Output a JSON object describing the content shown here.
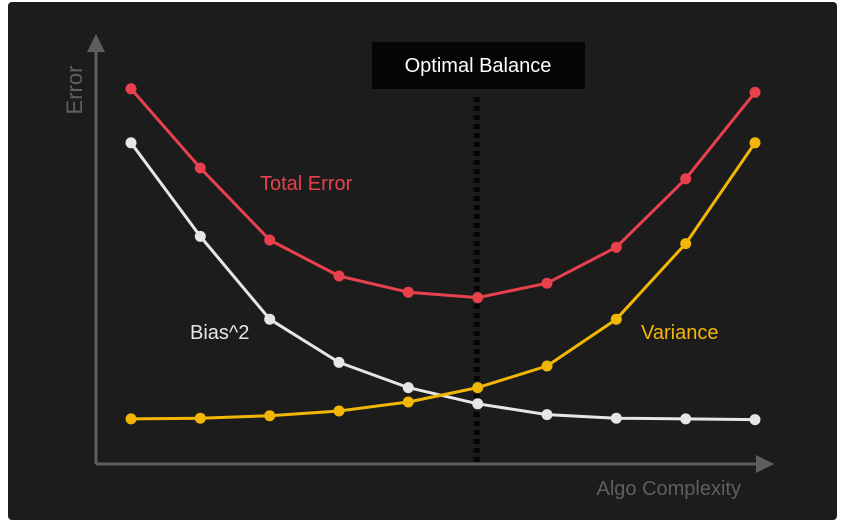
{
  "chart_data": {
    "type": "line",
    "xlabel": "Algo Complexity",
    "ylabel": "Error",
    "x": [
      1,
      2,
      3,
      4,
      5,
      6,
      7,
      8,
      9,
      10
    ],
    "ylim": [
      0,
      100
    ],
    "grid": false,
    "annotation": {
      "label": "Optimal Balance",
      "x": 6,
      "style": "dotted vertical line"
    },
    "series": [
      {
        "name": "Total Error",
        "color": "#e8414d",
        "values": [
          92,
          70,
          50,
          40,
          35.5,
          34,
          38,
          48,
          67,
          91
        ]
      },
      {
        "name": "Bias^2",
        "color": "#e6e6e6",
        "values": [
          77,
          51,
          28,
          16,
          9,
          4.5,
          1.5,
          0.5,
          0.3,
          0.1
        ]
      },
      {
        "name": "Variance",
        "color": "#f2b705",
        "values": [
          0.3,
          0.5,
          1.2,
          2.5,
          5,
          9,
          15,
          28,
          49,
          77
        ]
      }
    ]
  }
}
